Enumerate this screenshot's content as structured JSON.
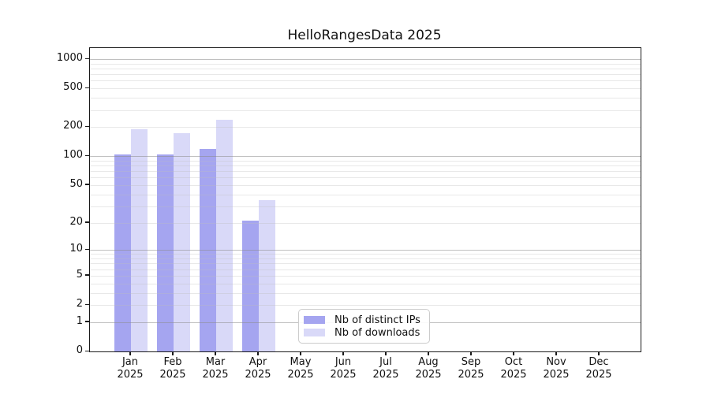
{
  "title": "HelloRangesData 2025",
  "chart_data": {
    "type": "bar",
    "title": "HelloRangesData 2025",
    "x_axis": {
      "months": [
        "Jan",
        "Feb",
        "Mar",
        "Apr",
        "May",
        "Jun",
        "Jul",
        "Aug",
        "Sep",
        "Oct",
        "Nov",
        "Dec"
      ],
      "year": "2025"
    },
    "y_axis": {
      "scale": "log1p",
      "tick_labels": [
        0,
        1,
        2,
        5,
        10,
        20,
        50,
        100,
        200,
        500,
        1000
      ],
      "ylim": [
        0,
        1300
      ],
      "major_gridlines": [
        1,
        10,
        100,
        1000
      ],
      "minor_gridline_mantissas": [
        2,
        3,
        4,
        5,
        6,
        7,
        8,
        9
      ],
      "grid_on": true
    },
    "series": [
      {
        "name": "Nb of distinct IPs",
        "color": "#a5a5f0",
        "values": [
          104,
          104,
          120,
          21,
          0,
          0,
          0,
          0,
          0,
          0,
          0,
          0
        ]
      },
      {
        "name": "Nb of downloads",
        "color": "#d9d9f8",
        "values": [
          190,
          172,
          240,
          35,
          0,
          0,
          0,
          0,
          0,
          0,
          0,
          0
        ]
      }
    ],
    "legend": {
      "position": "bottom-center",
      "entries": [
        "Nb of distinct IPs",
        "Nb of downloads"
      ]
    }
  },
  "colors": {
    "background": "#ffffff",
    "spine": "#1a1a1a",
    "major_grid": "rgba(140,140,140,0.55)",
    "minor_grid": "rgba(190,190,190,0.35)",
    "text": "#111111",
    "legend_border": "#cccccc"
  }
}
